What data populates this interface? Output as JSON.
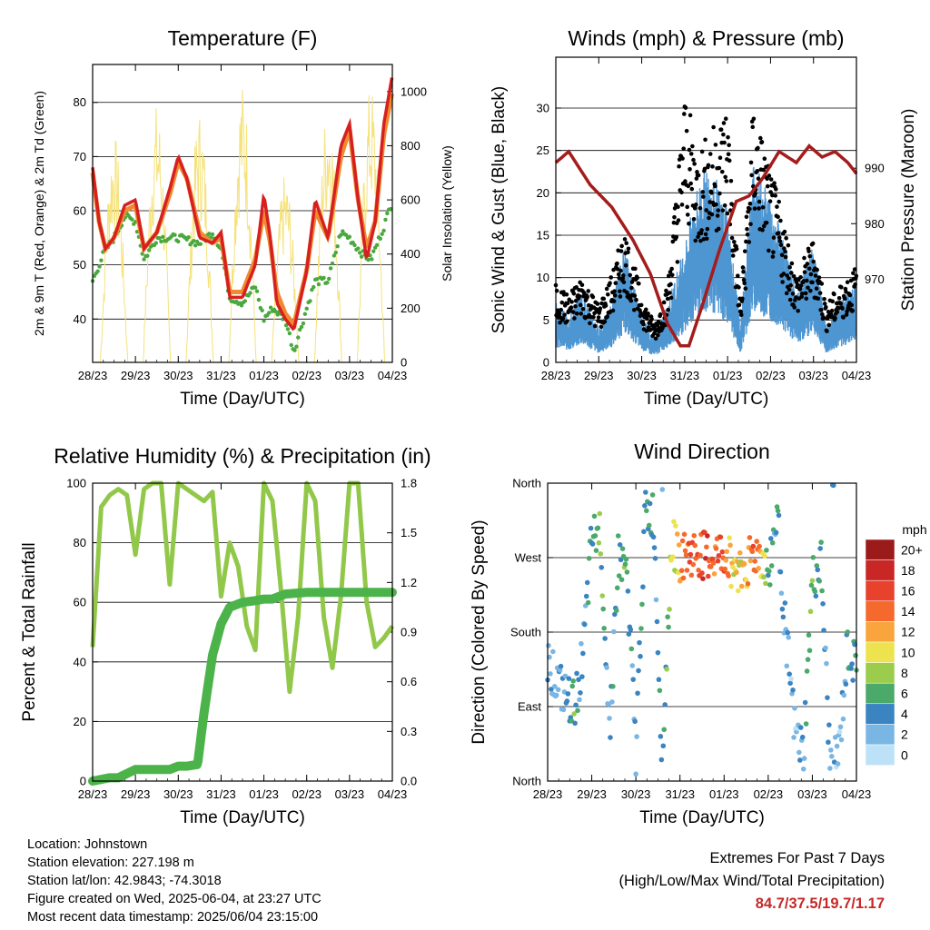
{
  "x_ticks": [
    "28/23",
    "29/23",
    "30/23",
    "31/23",
    "01/23",
    "02/23",
    "03/23",
    "04/23"
  ],
  "x_axis_title": "Time (Day/UTC)",
  "colors": {
    "temp_2m": "#d62020",
    "temp_9m": "#f08a30",
    "dewpoint": "#4aa83e",
    "solar": "#f5e27a",
    "wind": "#4e96d2",
    "gust": "#000000",
    "pressure": "#a41c1c",
    "rh": "#92c84a",
    "precip": "#4cb34a",
    "extremes": "#c62828"
  },
  "chart_data": [
    {
      "id": "temperature",
      "type": "line",
      "title": "Temperature (F)",
      "ylabel": "2m & 9m T (Red, Orange) & 2m Td (Green)",
      "ylabel_right": "Solar Insolation (Yellow)",
      "ylim": [
        32,
        87
      ],
      "ylim_right": [
        0,
        1100
      ],
      "yticks": [
        40,
        50,
        60,
        70,
        80
      ],
      "yticks_right": [
        0,
        200,
        400,
        600,
        800,
        1000
      ],
      "grid": true,
      "series": [
        {
          "key": "temp_2m",
          "x": [
            0,
            0.15,
            0.3,
            0.5,
            0.75,
            1,
            1.2,
            1.5,
            1.8,
            2,
            2.2,
            2.5,
            2.8,
            3,
            3.2,
            3.5,
            3.8,
            4,
            4.15,
            4.3,
            4.5,
            4.7,
            5,
            5.2,
            5.5,
            5.8,
            6,
            6.2,
            6.4,
            6.6,
            6.8,
            7
          ],
          "values": [
            68,
            58,
            53,
            55,
            61,
            62,
            53,
            56,
            64,
            70,
            66,
            55,
            54,
            56,
            44,
            44,
            50,
            63,
            55,
            43,
            40,
            38,
            49,
            62,
            55,
            72,
            76,
            62,
            51,
            58,
            76,
            85
          ]
        },
        {
          "key": "temp_9m",
          "x": [
            0,
            0.15,
            0.3,
            0.5,
            0.75,
            1,
            1.2,
            1.5,
            1.8,
            2,
            2.2,
            2.5,
            2.8,
            3,
            3.2,
            3.5,
            3.8,
            4,
            4.15,
            4.3,
            4.5,
            4.7,
            5,
            5.2,
            5.5,
            5.8,
            6,
            6.2,
            6.4,
            6.6,
            6.8,
            7
          ],
          "values": [
            67,
            58,
            53,
            55,
            60,
            61,
            53,
            56,
            63,
            69,
            66,
            56,
            54,
            55,
            45,
            45,
            51,
            60,
            54,
            45,
            41,
            39,
            49,
            60,
            55,
            70,
            75,
            62,
            53,
            58,
            74,
            82
          ]
        },
        {
          "key": "dewpoint",
          "x": [
            0,
            0.25,
            0.5,
            0.75,
            1,
            1.2,
            1.5,
            2,
            2.5,
            2.8,
            3,
            3.2,
            3.5,
            3.8,
            4,
            4.2,
            4.5,
            4.7,
            5,
            5.2,
            5.5,
            5.8,
            6,
            6.3,
            6.5,
            6.8,
            7
          ],
          "values": [
            47,
            52,
            55,
            59,
            58,
            51,
            55,
            55,
            54,
            56,
            53,
            44,
            43,
            46,
            40,
            42,
            40,
            34,
            42,
            47,
            47,
            56,
            55,
            52,
            51,
            57,
            62
          ]
        },
        {
          "key": "solar",
          "x": [
            0.5,
            1.5,
            2.5,
            3.5,
            4.5,
            5.5,
            6.5
          ],
          "values": [
            850,
            960,
            940,
            1040,
            700,
            980,
            1030
          ]
        }
      ]
    },
    {
      "id": "winds",
      "type": "scatter",
      "title": "Winds (mph) & Pressure (mb)",
      "ylabel": "Sonic Wind & Gust (Blue, Black)",
      "ylabel_right": "Station Pressure (Maroon)",
      "ylim": [
        0,
        36
      ],
      "ylim_right": [
        955,
        1010
      ],
      "yticks": [
        0,
        5,
        10,
        15,
        20,
        25,
        30
      ],
      "yticks_right": [
        970,
        980,
        990
      ],
      "grid": true,
      "series": [
        {
          "key": "wind",
          "x": [
            0,
            0.3,
            0.6,
            1,
            1.3,
            1.6,
            2,
            2.3,
            2.6,
            3,
            3.3,
            3.6,
            4,
            4.3,
            4.6,
            5,
            5.3,
            5.6,
            6,
            6.3,
            6.6,
            7
          ],
          "values": [
            5,
            4,
            6,
            3,
            5,
            10,
            4,
            2,
            5,
            10,
            15,
            17,
            13,
            3,
            17,
            14,
            11,
            6,
            10,
            3,
            5,
            7
          ]
        },
        {
          "key": "gust",
          "x": [
            0,
            0.3,
            0.6,
            1,
            1.3,
            1.6,
            2,
            2.3,
            2.6,
            3,
            3.3,
            3.6,
            4,
            4.3,
            4.6,
            5,
            5.3,
            5.6,
            6,
            6.3,
            6.6,
            7
          ],
          "values": [
            8,
            7,
            9,
            6,
            9,
            14,
            7,
            4,
            8,
            28,
            22,
            24,
            27,
            6,
            27,
            20,
            15,
            9,
            13,
            6,
            8,
            10
          ]
        },
        {
          "key": "pressure",
          "x": [
            0,
            0.3,
            0.8,
            1.3,
            1.8,
            2.2,
            2.6,
            2.9,
            3.1,
            3.4,
            3.8,
            4.2,
            4.5,
            4.8,
            5.2,
            5.6,
            5.9,
            6.2,
            6.5,
            6.8,
            7
          ],
          "values": [
            991,
            993,
            987,
            983,
            977,
            971,
            962,
            958,
            958,
            965,
            975,
            984,
            985,
            988,
            993,
            991,
            994,
            992,
            993,
            991,
            989
          ]
        }
      ]
    },
    {
      "id": "humidity",
      "type": "line",
      "title": "Relative Humidity (%) & Precipitation (in)",
      "ylabel": "Percent & Total Rainfall",
      "ylim": [
        0,
        100
      ],
      "ylim_right": [
        0,
        1.8
      ],
      "yticks": [
        0,
        20,
        40,
        60,
        80,
        100
      ],
      "yticks_right": [
        0.0,
        0.3,
        0.6,
        0.9,
        1.2,
        1.5,
        1.8
      ],
      "grid": true,
      "series": [
        {
          "key": "rh",
          "x": [
            0,
            0.2,
            0.4,
            0.6,
            0.8,
            1,
            1.2,
            1.4,
            1.6,
            1.8,
            2,
            2.2,
            2.4,
            2.6,
            2.8,
            3,
            3.2,
            3.4,
            3.6,
            3.8,
            4,
            4.2,
            4.4,
            4.6,
            4.8,
            5,
            5.2,
            5.4,
            5.6,
            5.8,
            6,
            6.2,
            6.4,
            6.6,
            6.8,
            7
          ],
          "values": [
            45,
            92,
            96,
            98,
            96,
            76,
            98,
            100,
            100,
            66,
            100,
            98,
            96,
            94,
            97,
            62,
            80,
            72,
            52,
            44,
            100,
            94,
            64,
            30,
            55,
            100,
            94,
            55,
            38,
            62,
            100,
            100,
            60,
            45,
            48,
            52
          ]
        },
        {
          "key": "precip",
          "x": [
            0,
            0.2,
            0.4,
            0.6,
            1,
            1.4,
            1.8,
            2,
            2.2,
            2.45,
            2.6,
            2.8,
            3,
            3.2,
            3.5,
            3.8,
            4,
            4.2,
            4.5,
            5,
            5.5,
            6,
            7
          ],
          "values": [
            0,
            0.01,
            0.02,
            0.02,
            0.07,
            0.07,
            0.07,
            0.09,
            0.09,
            0.1,
            0.41,
            0.76,
            0.95,
            1.05,
            1.08,
            1.09,
            1.1,
            1.1,
            1.13,
            1.14,
            1.14,
            1.14,
            1.14
          ]
        }
      ]
    },
    {
      "id": "direction",
      "type": "scatter",
      "title": "Wind Direction",
      "ylabel": "Direction (Colored By Speed)",
      "ylim": [
        0,
        360
      ],
      "yticks": [
        0,
        90,
        180,
        270,
        360
      ],
      "ytick_labels": [
        "North",
        "East",
        "South",
        "West",
        "North"
      ],
      "grid": true,
      "legend": {
        "title": "mph",
        "labels": [
          "20+",
          "18",
          "16",
          "14",
          "12",
          "10",
          "8",
          "6",
          "4",
          "2",
          "0"
        ],
        "colors": [
          "#9b1b1b",
          "#c92626",
          "#e8412c",
          "#f56a2c",
          "#f9a43c",
          "#ede34e",
          "#9ccc4c",
          "#4ba96a",
          "#3a84c2",
          "#7ab6e4",
          "#bde2f7"
        ],
        "position": "right"
      },
      "series": [
        {
          "key": "direction",
          "x": [
            0,
            0.2,
            0.4,
            0.6,
            0.8,
            1,
            1.2,
            1.4,
            1.6,
            1.8,
            2,
            2.2,
            2.4,
            2.6,
            2.8,
            3,
            3.2,
            3.4,
            3.6,
            3.8,
            4,
            4.2,
            4.4,
            4.6,
            4.8,
            5,
            5.2,
            5.4,
            5.6,
            5.8,
            6,
            6.2,
            6.4,
            6.6,
            6.8,
            7
          ],
          "values": [
            150,
            120,
            100,
            90,
            150,
            290,
            300,
            60,
            270,
            250,
            30,
            320,
            320,
            20,
            290,
            270,
            270,
            275,
            270,
            270,
            275,
            260,
            255,
            270,
            275,
            250,
            320,
            180,
            60,
            30,
            240,
            260,
            20,
            30,
            160,
            130
          ],
          "speeds": [
            3,
            2,
            4,
            6,
            3,
            5,
            7,
            2,
            6,
            5,
            3,
            6,
            4,
            3,
            8,
            12,
            14,
            15,
            16,
            13,
            15,
            9,
            10,
            14,
            13,
            6,
            4,
            3,
            2,
            3,
            7,
            5,
            3,
            2,
            4,
            6
          ]
        }
      ]
    }
  ],
  "info": {
    "location": "Location: Johnstown",
    "elevation": "Station elevation: 227.198 m",
    "latlon": "Station lat/lon: 42.9843; -74.3018",
    "created": "Figure created on Wed, 2025-06-04, at 23:27 UTC",
    "recent": "Most recent data timestamp: 2025/06/04 23:15:00"
  },
  "extremes": {
    "title": "Extremes For Past 7 Days",
    "subtitle": "(High/Low/Max Wind/Total Precipitation)",
    "values": "84.7/37.5/19.7/1.17"
  }
}
